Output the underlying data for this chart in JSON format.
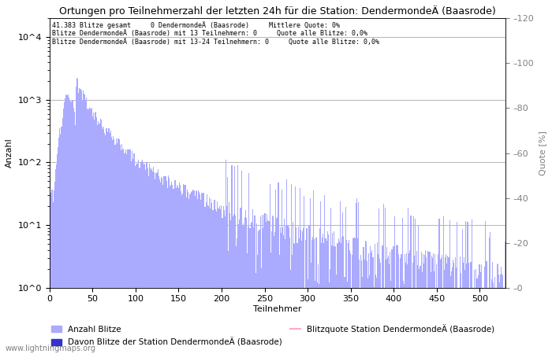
{
  "title": "Ortungen pro Teilnehmerzahl der letzten 24h für die Station: DendermondeÄ (Baasrode)",
  "xlabel": "Teilnehmer",
  "ylabel_left": "Anzahl",
  "ylabel_right": "Quote [%]",
  "annotation_lines": [
    "41.383 Blitze gesamt     0 DendermondeÄ (Baasrode)     Mittlere Quote: 0%",
    "Blitze DendermondeÄ (Baasrode) mit 13 Teilnehmern: 0     Quote alle Blitze: 0,0%",
    "Blitze DendermondeÄ (Baasrode) mit 13-24 Teilnehmern: 0     Quote alle Blitze: 0,0%"
  ],
  "bar_color": "#aaaaff",
  "bar_color_station": "#3333cc",
  "quote_color": "#ffaacc",
  "xlim": [
    0,
    530
  ],
  "ylim_right": [
    0,
    120
  ],
  "yticks_right": [
    0,
    20,
    40,
    60,
    80,
    100,
    120
  ],
  "legend_label_bar": "Anzahl Blitze",
  "legend_label_station": "Davon Blitze der Station DendermondeÄ (Baasrode)",
  "legend_label_quote": "Blitzquote Station DendermondeÄ (Baasrode)",
  "watermark": "www.lightningmaps.org",
  "background_color": "#ffffff",
  "grid_color": "#aaaaaa",
  "fig_width": 7.0,
  "fig_height": 4.5,
  "dpi": 100
}
